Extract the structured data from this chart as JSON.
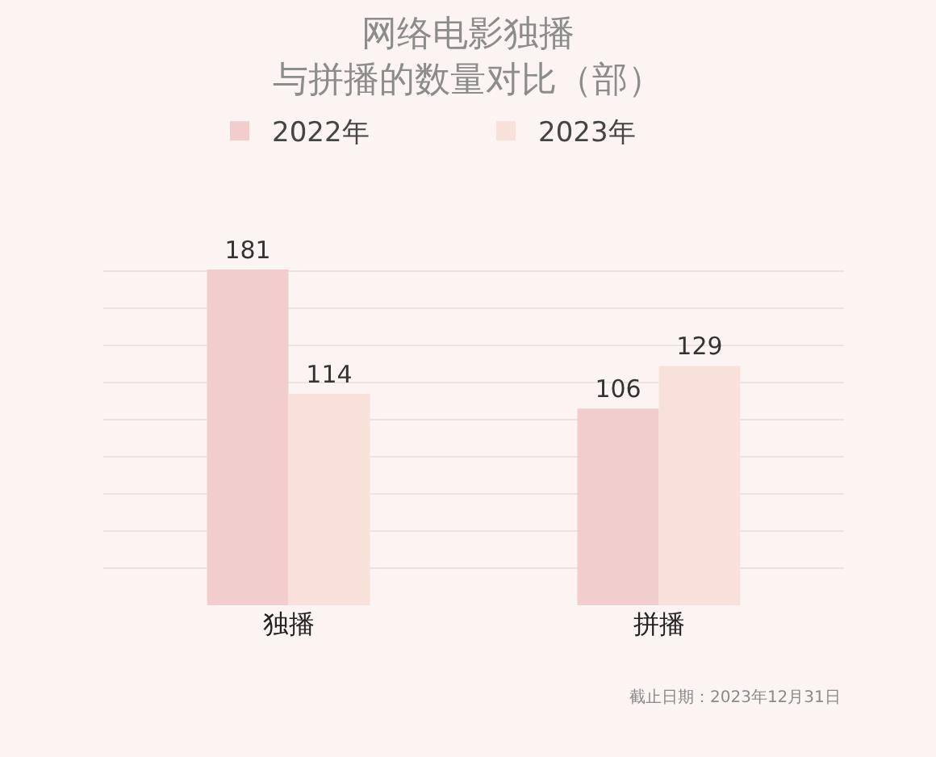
{
  "chart_data": {
    "type": "bar",
    "title": "网络电影独播与拼播的数量对比（部）",
    "categories": [
      "独播",
      "拼播"
    ],
    "series": [
      {
        "name": "2022年",
        "color": "#f2cdcd",
        "values": [
          181,
          106
        ]
      },
      {
        "name": "2023年",
        "color": "#f7e1da",
        "values": [
          114,
          129
        ]
      }
    ],
    "data_labels": true,
    "grid": "y",
    "tick_labels": "x",
    "legend": "top",
    "annotations": [
      "截止日期：2023年12月31日"
    ]
  }
}
